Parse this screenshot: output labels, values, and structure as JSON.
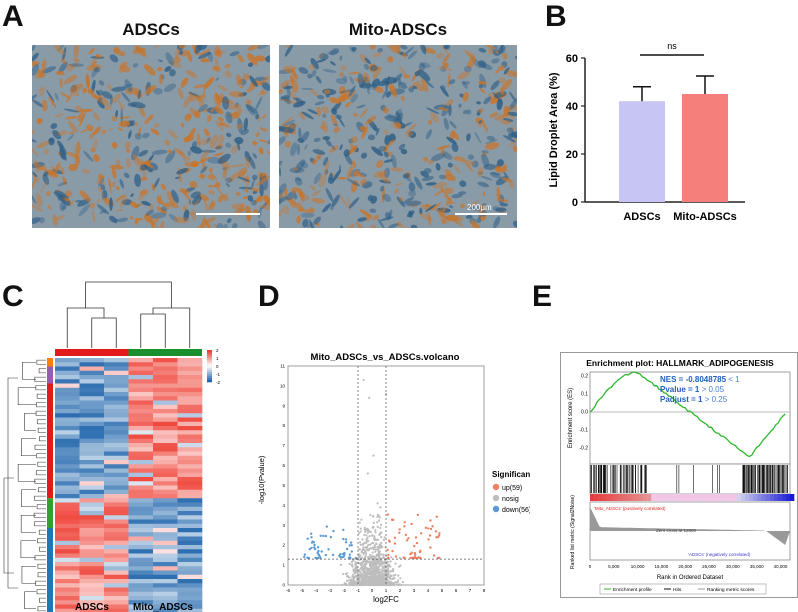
{
  "panels": {
    "a": "A",
    "b": "B",
    "c": "C",
    "d": "D",
    "e": "E"
  },
  "panel_a": {
    "left_title": "ADSCs",
    "right_title": "Mito-ADSCs",
    "scale_label": "200μm",
    "colors": {
      "orange": "#c8742a",
      "blue": "#2f5f86",
      "base": "#8a9ba8"
    }
  },
  "panel_c": {
    "groups": [
      "ADSCs",
      "Mito_ADSCs"
    ],
    "group_colors": [
      "#e31a1c",
      "#1a8f2d"
    ],
    "legend_ticks": [
      "2",
      "1",
      "0",
      "-1",
      "-2"
    ],
    "colors": {
      "high": "#ee4035",
      "mid": "#ffffff",
      "low": "#2166ac"
    }
  },
  "chart_data": [
    {
      "id": "B",
      "type": "bar",
      "categories": [
        "ADSCs",
        "Mito-ADSCs"
      ],
      "values": [
        42,
        45
      ],
      "errors": [
        6,
        7.5
      ],
      "colors": [
        "#c7c5f3",
        "#f57f7b"
      ],
      "ylabel": "Lipid Droplet Area (%)",
      "ylim": [
        0,
        60
      ],
      "yticks": [
        "0",
        "20",
        "40",
        "60"
      ],
      "annotation": "ns"
    },
    {
      "id": "D",
      "type": "scatter",
      "title": "Mito_ADSCs_vs_ADSCs.volcano",
      "xlabel": "log2FC",
      "ylabel": "-log10(Pvalue)",
      "xlim": [
        -6,
        8
      ],
      "ylim": [
        0,
        11
      ],
      "xticks": [
        "-6",
        "-5",
        "-4",
        "-3",
        "-2",
        "-1",
        "0",
        "1",
        "2",
        "3",
        "4",
        "5",
        "6",
        "7",
        "8"
      ],
      "yticks": [
        "0",
        "1",
        "2",
        "3",
        "4",
        "5",
        "6",
        "7",
        "8",
        "9",
        "10",
        "11"
      ],
      "thresholds": {
        "x": [
          -1,
          1
        ],
        "y": 1.3
      },
      "legend_title": "Significant",
      "legend": [
        {
          "label": "up(59)",
          "color": "#f08060"
        },
        {
          "label": "nosig",
          "color": "#bdbdbd"
        },
        {
          "label": "down(56)",
          "color": "#5b9bd5"
        }
      ]
    },
    {
      "id": "E",
      "type": "line",
      "title": "Enrichment plot: HALLMARK_ADIPOGENESIS",
      "ylabel_top": "Enrichment score (ES)",
      "ylabel_bottom": "Ranked list metric (Signal2Noise)",
      "xlabel": "Rank in Ordered Dataset",
      "yticks": [
        "0.2",
        "0.1",
        "0.0",
        "-0.1",
        "-0.2"
      ],
      "xticks": [
        "0",
        "5,000",
        "10,000",
        "15,000",
        "20,000",
        "25,000",
        "30,000",
        "35,000",
        "40,000"
      ],
      "stats": [
        {
          "label": "NES = -0.8048785",
          "extra": " < 1"
        },
        {
          "label": "Pvalue = 1",
          "extra": " > 0.05"
        },
        {
          "label": "Padjust = 1",
          "extra": " > 0.25"
        }
      ],
      "pos_label": "'Mito_ADSCs' (positively correlated)",
      "neg_label": "'ADSCs' (negatively correlated)",
      "zero_cross": "Zero cross at 12800",
      "legend": [
        "Enrichment profile",
        "Hits",
        "Ranking metric scores"
      ]
    }
  ]
}
